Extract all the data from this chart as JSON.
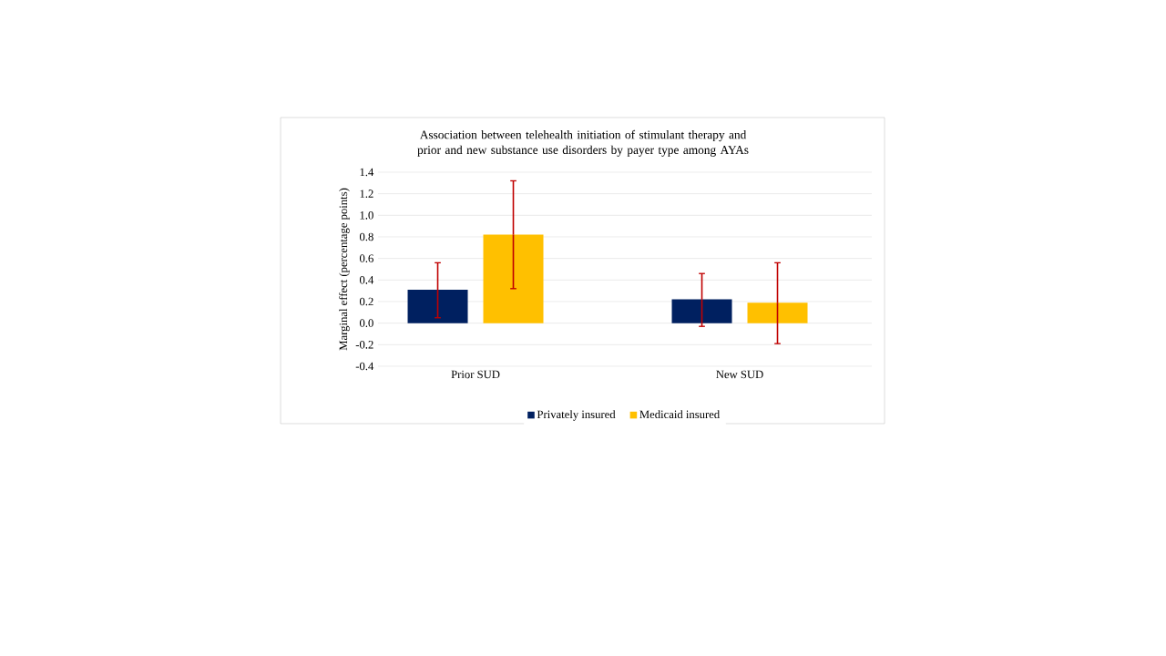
{
  "chart_data": {
    "type": "bar",
    "title": "Association between telehealth initiation  of stimulant therapy and prior and new substance use disorders by payer type among AYAs",
    "ylabel": "Marginal  effect (percentage points)",
    "categories": [
      "Prior SUD",
      "New SUD"
    ],
    "series": [
      {
        "name": "Privately insured",
        "color": "#002060",
        "values": [
          0.31,
          0.22
        ],
        "errors": [
          [
            0.05,
            0.56
          ],
          [
            -0.03,
            0.46
          ]
        ]
      },
      {
        "name": "Medicaid insured",
        "color": "#ffc000",
        "values": [
          0.82,
          0.19
        ],
        "errors": [
          [
            0.32,
            1.32
          ],
          [
            -0.19,
            0.56
          ]
        ]
      }
    ],
    "ylim": [
      -0.4,
      1.4
    ],
    "yticks": [
      {
        "value": -0.4,
        "label": "-0.4"
      },
      {
        "value": -0.2,
        "label": "-0.2"
      },
      {
        "value": 0,
        "label": "0.0"
      },
      {
        "value": 0.2,
        "label": "0.2"
      },
      {
        "value": 0.4,
        "label": "0.4"
      },
      {
        "value": 0.6,
        "label": "0.6"
      },
      {
        "value": 0.8,
        "label": "0.8"
      },
      {
        "value": 1.0,
        "label": "1.0"
      },
      {
        "value": 1.2,
        "label": "1.2"
      },
      {
        "value": 1.4,
        "label": "1.4"
      }
    ],
    "grid": "y",
    "legend": "bottom"
  }
}
